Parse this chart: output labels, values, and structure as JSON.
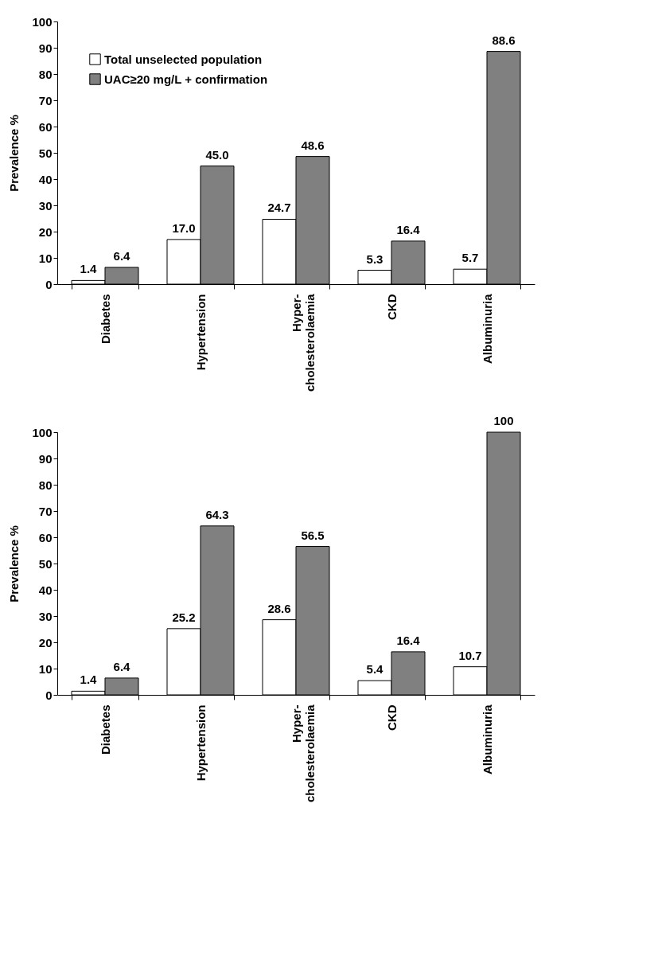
{
  "chart_data": [
    {
      "type": "bar",
      "ylabel": "Prevalence %",
      "categories": [
        "Diabetes",
        "Hypertension",
        "Hyper-\ncholesterolaemia",
        "CKD",
        "Albuminuria"
      ],
      "ylim": [
        0,
        100
      ],
      "yticks": [
        0,
        10,
        20,
        30,
        40,
        50,
        60,
        70,
        80,
        90,
        100
      ],
      "legend": "top left",
      "series": [
        {
          "name": "Total unselected population",
          "color": "#ffffff",
          "values": [
            1.4,
            17.0,
            24.7,
            5.3,
            5.7
          ],
          "value_labels": [
            "1.4",
            "17.0",
            "24.7",
            "5.3",
            "5.7"
          ]
        },
        {
          "name": "UAC≥20 mg/L + confirmation",
          "color": "#808080",
          "values": [
            6.4,
            45.0,
            48.6,
            16.4,
            88.6
          ],
          "value_labels": [
            "6.4",
            "45.0",
            "48.6",
            "16.4",
            "88.6"
          ]
        }
      ]
    },
    {
      "type": "bar",
      "ylabel": "Prevalence %",
      "categories": [
        "Diabetes",
        "Hypertension",
        "Hyper-\ncholesterolaemia",
        "CKD",
        "Albuminuria"
      ],
      "ylim": [
        0,
        100
      ],
      "yticks": [
        0,
        10,
        20,
        30,
        40,
        50,
        60,
        70,
        80,
        90,
        100
      ],
      "legend": "top left",
      "series": [
        {
          "name": "Total unselected population",
          "color": "#ffffff",
          "values": [
            1.4,
            25.2,
            28.6,
            5.4,
            10.7
          ],
          "value_labels": [
            "1.4",
            "25.2",
            "28.6",
            "5.4",
            "10.7"
          ]
        },
        {
          "name": "UAC≥20 mg/L + confirmation",
          "color": "#808080",
          "values": [
            6.4,
            64.3,
            56.5,
            16.4,
            100
          ],
          "value_labels": [
            "6.4",
            "64.3",
            "56.5",
            "16.4",
            "100"
          ]
        }
      ]
    }
  ]
}
